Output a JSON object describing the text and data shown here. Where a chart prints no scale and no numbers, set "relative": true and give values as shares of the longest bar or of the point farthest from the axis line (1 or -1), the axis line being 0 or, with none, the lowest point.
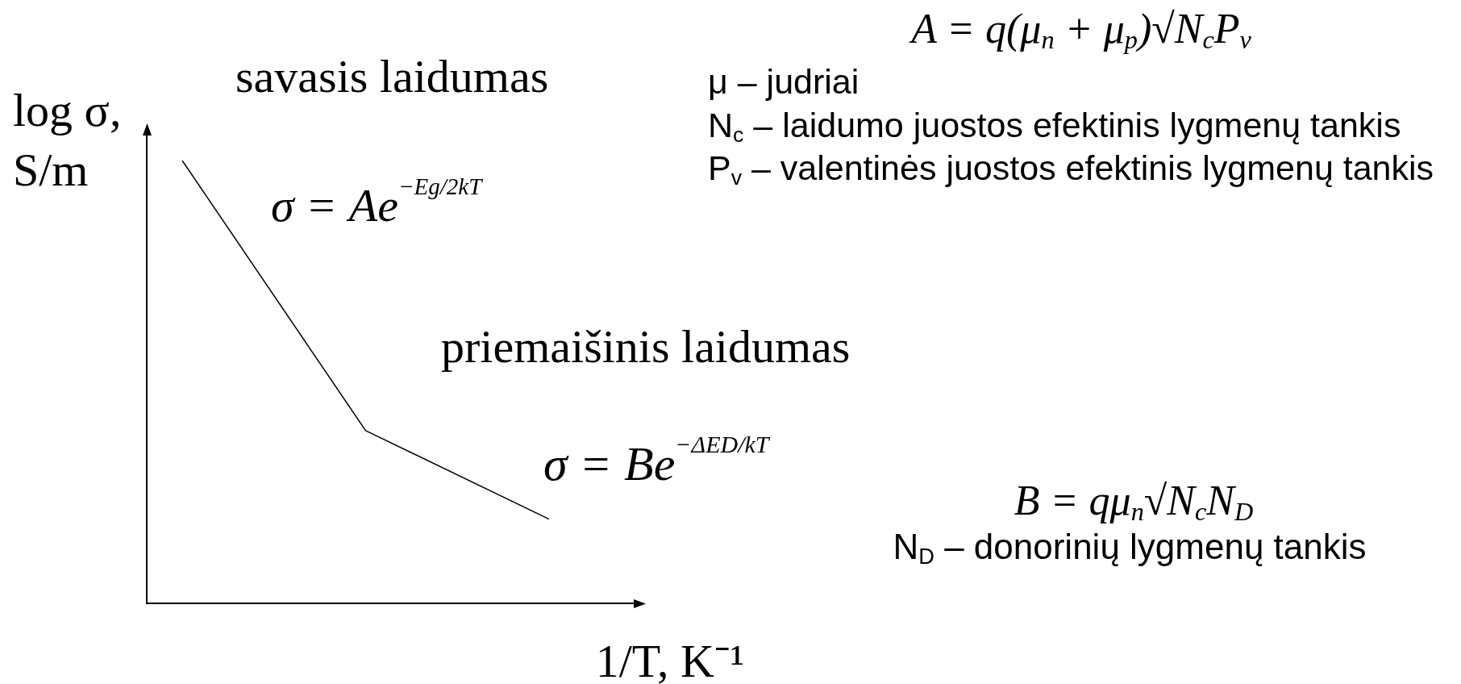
{
  "chart_data": {
    "type": "line",
    "relative": true,
    "xlabel": "1/T, K⁻¹",
    "ylabel": "log σ, S/m",
    "categories": [
      null,
      null,
      null
    ],
    "values": [
      1,
      0.39,
      0.19
    ],
    "color": "#000000",
    "annotations": [
      "savasis laidumas",
      "σ = Ae$^{−Eg/2kT}$",
      "priemaišinis laidumas",
      "σ = Be$^{−ΔED/kT}$",
      "A = q(μ$_{n}$ + μ$_{p}$)√N$_{c}$P$_{v}$",
      "μ – judriai",
      "N$_{c}$ – laidumo juostos efektinis lygmenų tankis",
      "P$_{v}$ – valentinės juostos efektinis lygmenų tankis",
      "B = qμ$_{n}$√N$_{c}$N$_{D}$",
      "N$_{D}$ – donorinių lygmenų tankis"
    ]
  }
}
